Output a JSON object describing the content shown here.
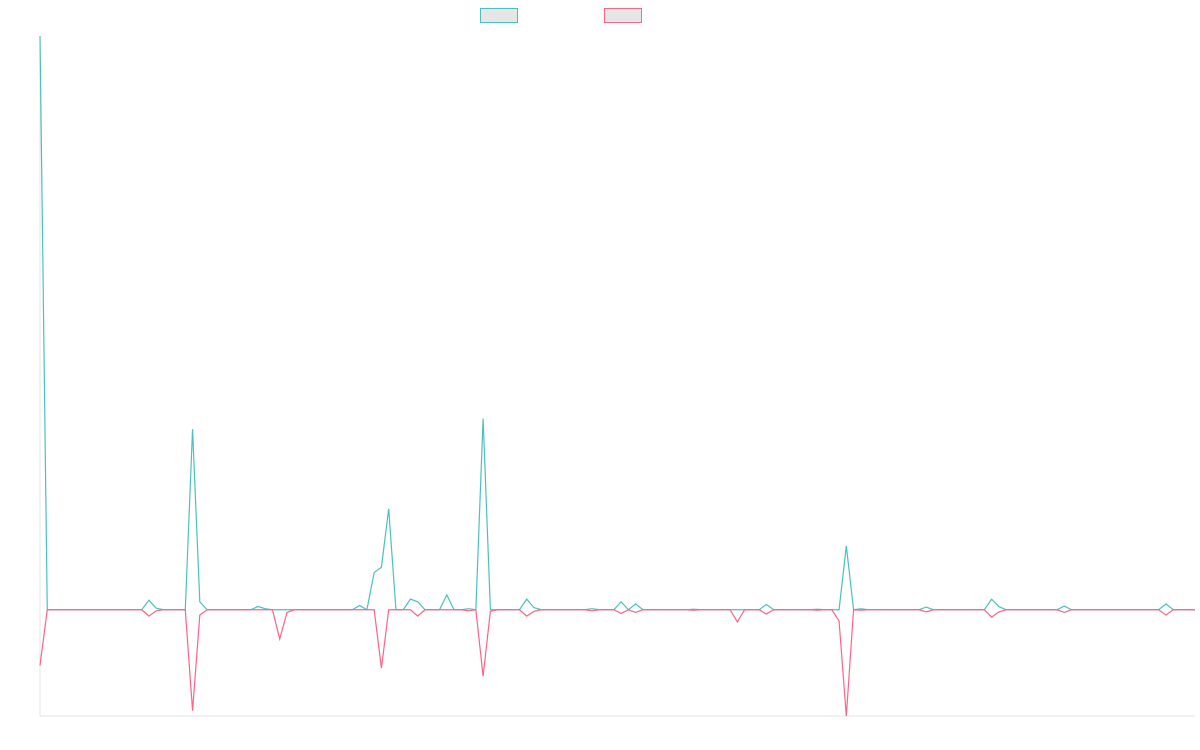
{
  "chart_data": {
    "type": "line",
    "title": "",
    "xlabel": "",
    "ylabel": "",
    "grid": false,
    "legend_position": "top",
    "x_count": 160,
    "ylim": [
      -20,
      108
    ],
    "series": [
      {
        "name": "",
        "color": "#4bc0c0",
        "points": [
          [
            0,
            108
          ],
          [
            15,
            1.8
          ],
          [
            16,
            0.3
          ],
          [
            21,
            34
          ],
          [
            22,
            1.5
          ],
          [
            30,
            0.6
          ],
          [
            31,
            0.2
          ],
          [
            44,
            0.8
          ],
          [
            46,
            7
          ],
          [
            47,
            8
          ],
          [
            48,
            19
          ],
          [
            51,
            2
          ],
          [
            52,
            1.5
          ],
          [
            56,
            2.8
          ],
          [
            59,
            0.2
          ],
          [
            61,
            36
          ],
          [
            67,
            2
          ],
          [
            68,
            0.4
          ],
          [
            76,
            0.2
          ],
          [
            80,
            1.5
          ],
          [
            82,
            1.1
          ],
          [
            90,
            0.1
          ],
          [
            100,
            1
          ],
          [
            107,
            0.1
          ],
          [
            111,
            12
          ],
          [
            113,
            0.2
          ],
          [
            122,
            0.5
          ],
          [
            131,
            2
          ],
          [
            132,
            0.6
          ],
          [
            141,
            0.7
          ],
          [
            155,
            1.1
          ]
        ]
      },
      {
        "name": "",
        "color": "#ff6384",
        "points": [
          [
            0,
            -10.5
          ],
          [
            15,
            -1.2
          ],
          [
            16,
            -0.2
          ],
          [
            21,
            -19
          ],
          [
            22,
            -1
          ],
          [
            33,
            -5.5
          ],
          [
            34,
            -0.5
          ],
          [
            47,
            -11
          ],
          [
            52,
            -1.2
          ],
          [
            59,
            -0.2
          ],
          [
            61,
            -12.5
          ],
          [
            62,
            -0.3
          ],
          [
            67,
            -1.2
          ],
          [
            68,
            -0.3
          ],
          [
            76,
            -0.2
          ],
          [
            80,
            -0.7
          ],
          [
            82,
            -0.5
          ],
          [
            90,
            -0.1
          ],
          [
            96,
            -2.3
          ],
          [
            100,
            -0.8
          ],
          [
            107,
            -0.1
          ],
          [
            110,
            -2.1
          ],
          [
            111,
            -20
          ],
          [
            113,
            -0.1
          ],
          [
            122,
            -0.4
          ],
          [
            131,
            -1.4
          ],
          [
            132,
            -0.4
          ],
          [
            141,
            -0.5
          ],
          [
            155,
            -1
          ]
        ]
      }
    ]
  }
}
